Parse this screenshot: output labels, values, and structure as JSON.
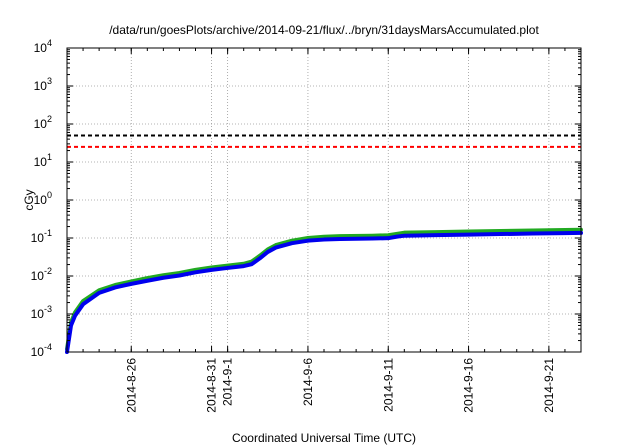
{
  "chart_data": {
    "type": "line",
    "title": "/data/run/goesPlots/archive/2014-09-21/flux/../bryn/31daysMarsAccumulated.plot",
    "xlabel": "Coordinated Universal Time (UTC)",
    "ylabel": "cGy",
    "scale": {
      "x": "time",
      "y": "log"
    },
    "grid": true,
    "ylim": [
      0.0001,
      10000
    ],
    "xlim": [
      "2014-08-22",
      "2014-09-23"
    ],
    "y_ticks": [
      {
        "value": 0.0001,
        "base": "10",
        "exp": "-4"
      },
      {
        "value": 0.001,
        "base": "10",
        "exp": "-3"
      },
      {
        "value": 0.01,
        "base": "10",
        "exp": "-2"
      },
      {
        "value": 0.1,
        "base": "10",
        "exp": "-1"
      },
      {
        "value": 1,
        "base": "10",
        "exp": "0"
      },
      {
        "value": 10,
        "base": "10",
        "exp": "1"
      },
      {
        "value": 100,
        "base": "10",
        "exp": "2"
      },
      {
        "value": 1000,
        "base": "10",
        "exp": "3"
      },
      {
        "value": 10000,
        "base": "10",
        "exp": "4"
      }
    ],
    "x_ticks": [
      {
        "date": "2014-08-26",
        "label": "2014-8-26"
      },
      {
        "date": "2014-08-31",
        "label": "2014-8-31"
      },
      {
        "date": "2014-09-01",
        "label": "2014-9-1"
      },
      {
        "date": "2014-09-06",
        "label": "2014-9-6"
      },
      {
        "date": "2014-09-11",
        "label": "2014-9-11"
      },
      {
        "date": "2014-09-16",
        "label": "2014-9-16"
      },
      {
        "date": "2014-09-21",
        "label": "2014-9-21"
      }
    ],
    "reference_lines": [
      {
        "value": 50,
        "color": "#000000",
        "dash": "dashed"
      },
      {
        "value": 25,
        "color": "#ff0000",
        "dash": "dashed"
      }
    ],
    "series": [
      {
        "color": "#22aa22",
        "points": [
          [
            "2014-08-22T00:00",
            0.00012
          ],
          [
            "2014-08-22T06:00",
            0.0006
          ],
          [
            "2014-08-22T12:00",
            0.0011
          ],
          [
            "2014-08-23T00:00",
            0.0022
          ],
          [
            "2014-08-24T00:00",
            0.0042
          ],
          [
            "2014-08-25T00:00",
            0.0058
          ],
          [
            "2014-08-26T00:00",
            0.0072
          ],
          [
            "2014-08-27T00:00",
            0.0088
          ],
          [
            "2014-08-28T00:00",
            0.0105
          ],
          [
            "2014-08-29T00:00",
            0.012
          ],
          [
            "2014-08-30T00:00",
            0.0145
          ],
          [
            "2014-08-31T00:00",
            0.0167
          ],
          [
            "2014-09-01T00:00",
            0.0188
          ],
          [
            "2014-09-02T00:00",
            0.021
          ],
          [
            "2014-09-02T12:00",
            0.024
          ],
          [
            "2014-09-03T00:00",
            0.034
          ],
          [
            "2014-09-03T12:00",
            0.05
          ],
          [
            "2014-09-04T00:00",
            0.065
          ],
          [
            "2014-09-05T00:00",
            0.085
          ],
          [
            "2014-09-06T00:00",
            0.1
          ],
          [
            "2014-09-07T00:00",
            0.108
          ],
          [
            "2014-09-08T00:00",
            0.112
          ],
          [
            "2014-09-10T00:00",
            0.115
          ],
          [
            "2014-09-11T00:00",
            0.118
          ],
          [
            "2014-09-11T12:00",
            0.128
          ],
          [
            "2014-09-12T00:00",
            0.138
          ],
          [
            "2014-09-14T00:00",
            0.143
          ],
          [
            "2014-09-16T00:00",
            0.148
          ],
          [
            "2014-09-18T00:00",
            0.153
          ],
          [
            "2014-09-20T00:00",
            0.158
          ],
          [
            "2014-09-22T00:00",
            0.162
          ],
          [
            "2014-09-23T00:00",
            0.165
          ]
        ]
      },
      {
        "color": "#0000ee",
        "points": [
          [
            "2014-08-22T00:00",
            0.0001
          ],
          [
            "2014-08-22T06:00",
            0.0005
          ],
          [
            "2014-08-22T12:00",
            0.0009
          ],
          [
            "2014-08-23T00:00",
            0.0018
          ],
          [
            "2014-08-24T00:00",
            0.0036
          ],
          [
            "2014-08-25T00:00",
            0.005
          ],
          [
            "2014-08-26T00:00",
            0.0062
          ],
          [
            "2014-08-27T00:00",
            0.0075
          ],
          [
            "2014-08-28T00:00",
            0.009
          ],
          [
            "2014-08-29T00:00",
            0.0103
          ],
          [
            "2014-08-30T00:00",
            0.0125
          ],
          [
            "2014-08-31T00:00",
            0.0145
          ],
          [
            "2014-09-01T00:00",
            0.0163
          ],
          [
            "2014-09-02T00:00",
            0.0182
          ],
          [
            "2014-09-02T12:00",
            0.0205
          ],
          [
            "2014-09-03T00:00",
            0.029
          ],
          [
            "2014-09-03T12:00",
            0.043
          ],
          [
            "2014-09-04T00:00",
            0.056
          ],
          [
            "2014-09-05T00:00",
            0.073
          ],
          [
            "2014-09-06T00:00",
            0.085
          ],
          [
            "2014-09-07T00:00",
            0.091
          ],
          [
            "2014-09-08T00:00",
            0.094
          ],
          [
            "2014-09-10T00:00",
            0.097
          ],
          [
            "2014-09-11T00:00",
            0.099
          ],
          [
            "2014-09-11T12:00",
            0.108
          ],
          [
            "2014-09-12T00:00",
            0.115
          ],
          [
            "2014-09-14T00:00",
            0.119
          ],
          [
            "2014-09-16T00:00",
            0.123
          ],
          [
            "2014-09-18T00:00",
            0.127
          ],
          [
            "2014-09-20T00:00",
            0.131
          ],
          [
            "2014-09-22T00:00",
            0.134
          ],
          [
            "2014-09-23T00:00",
            0.136
          ]
        ]
      }
    ]
  }
}
